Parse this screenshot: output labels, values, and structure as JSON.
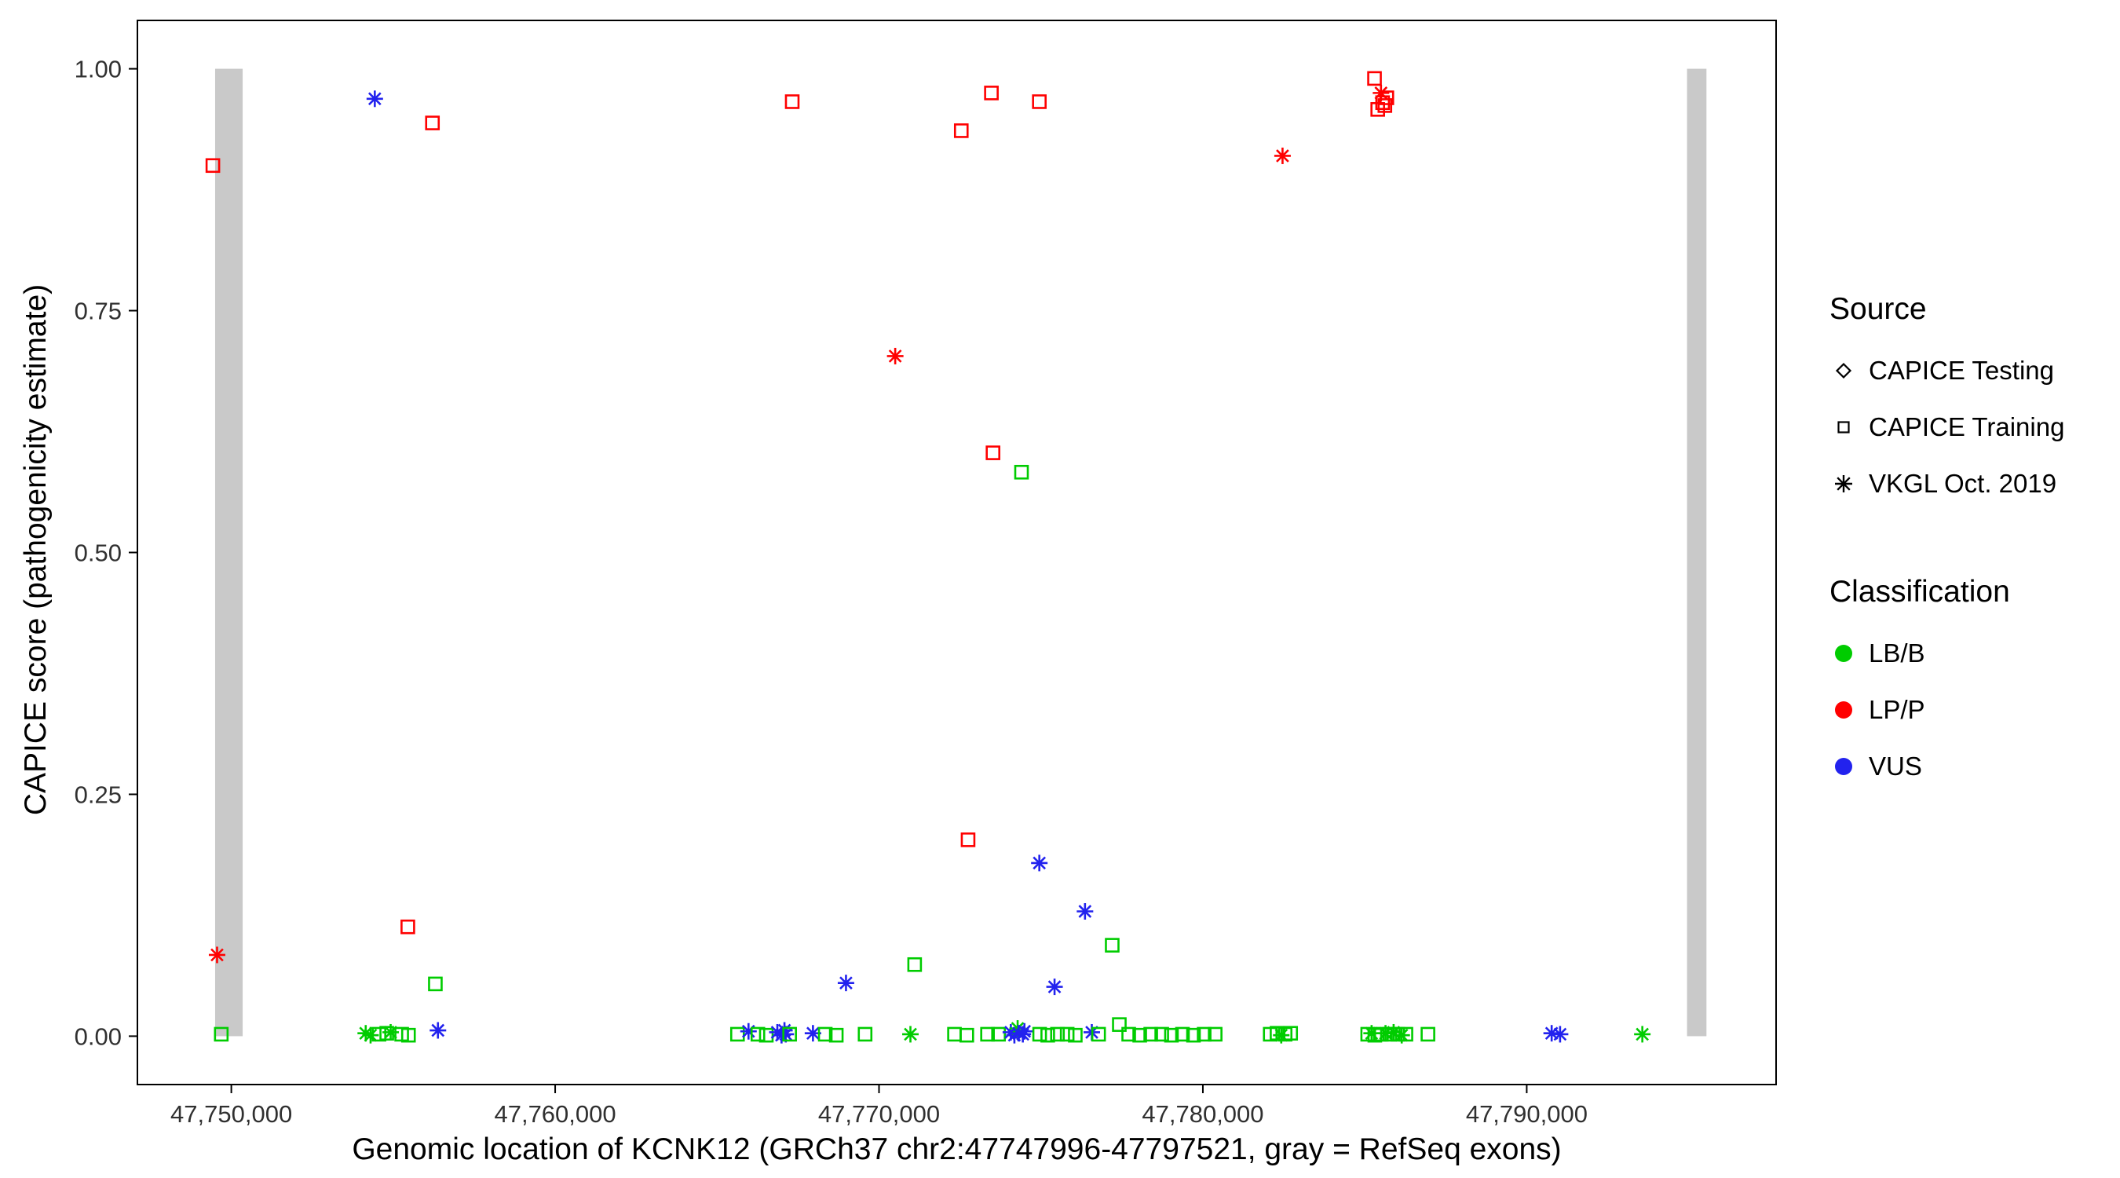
{
  "chart_data": {
    "type": "scatter",
    "title": "",
    "xlabel": "Genomic location of KCNK12 (GRCh37 chr2:47747996-47797521, gray = RefSeq exons)",
    "ylabel": "CAPICE score (pathogenicity estimate)",
    "xlim": [
      47747100,
      47797700
    ],
    "ylim": [
      -0.05,
      1.05
    ],
    "grid": false,
    "x_ticks": [
      {
        "value": 47750000,
        "label": "47,750,000"
      },
      {
        "value": 47760000,
        "label": "47,760,000"
      },
      {
        "value": 47770000,
        "label": "47,770,000"
      },
      {
        "value": 47780000,
        "label": "47,780,000"
      },
      {
        "value": 47790000,
        "label": "47,790,000"
      }
    ],
    "y_ticks": [
      {
        "value": 0.0,
        "label": "0.00"
      },
      {
        "value": 0.25,
        "label": "0.25"
      },
      {
        "value": 0.5,
        "label": "0.50"
      },
      {
        "value": 0.75,
        "label": "0.75"
      },
      {
        "value": 1.0,
        "label": "1.00"
      }
    ],
    "exon_color": "#C9C9C9",
    "exons": [
      {
        "start": 47749500,
        "end": 47750350
      },
      {
        "start": 47794950,
        "end": 47795550
      }
    ],
    "legend": {
      "source": {
        "title": "Source",
        "items": [
          {
            "key": "testing",
            "shape": "diamond",
            "label": "CAPICE Testing"
          },
          {
            "key": "training",
            "shape": "square",
            "label": "CAPICE Training"
          },
          {
            "key": "vkgl",
            "shape": "asterisk",
            "label": "VKGL Oct. 2019"
          }
        ]
      },
      "classification": {
        "title": "Classification",
        "items": [
          {
            "label": "LB/B",
            "color": "#00CC00"
          },
          {
            "label": "LP/P",
            "color": "#FF0000"
          },
          {
            "label": "VUS",
            "color": "#2222EE"
          }
        ]
      }
    },
    "points": [
      {
        "x": 47749430,
        "y": 0.9,
        "src": "training",
        "cls": "LP/P"
      },
      {
        "x": 47749560,
        "y": 0.084,
        "src": "vkgl",
        "cls": "LP/P"
      },
      {
        "x": 47749690,
        "y": 0.002,
        "src": "training",
        "cls": "LB/B"
      },
      {
        "x": 47754430,
        "y": 0.969,
        "src": "vkgl",
        "cls": "VUS"
      },
      {
        "x": 47756210,
        "y": 0.944,
        "src": "training",
        "cls": "LP/P"
      },
      {
        "x": 47755450,
        "y": 0.113,
        "src": "training",
        "cls": "LP/P"
      },
      {
        "x": 47756300,
        "y": 0.054,
        "src": "training",
        "cls": "LB/B"
      },
      {
        "x": 47754150,
        "y": 0.003,
        "src": "vkgl",
        "cls": "LB/B"
      },
      {
        "x": 47754300,
        "y": 0.001,
        "src": "vkgl",
        "cls": "LB/B"
      },
      {
        "x": 47754560,
        "y": 0.002,
        "src": "training",
        "cls": "LB/B"
      },
      {
        "x": 47754800,
        "y": 0.003,
        "src": "training",
        "cls": "LB/B"
      },
      {
        "x": 47754920,
        "y": 0.004,
        "src": "vkgl",
        "cls": "LB/B"
      },
      {
        "x": 47755260,
        "y": 0.002,
        "src": "training",
        "cls": "LB/B"
      },
      {
        "x": 47755470,
        "y": 0.001,
        "src": "training",
        "cls": "LB/B"
      },
      {
        "x": 47756380,
        "y": 0.006,
        "src": "vkgl",
        "cls": "VUS"
      },
      {
        "x": 47765630,
        "y": 0.002,
        "src": "training",
        "cls": "LB/B"
      },
      {
        "x": 47765970,
        "y": 0.005,
        "src": "vkgl",
        "cls": "VUS"
      },
      {
        "x": 47766260,
        "y": 0.002,
        "src": "training",
        "cls": "LB/B"
      },
      {
        "x": 47766520,
        "y": 0.001,
        "src": "training",
        "cls": "LB/B"
      },
      {
        "x": 47766860,
        "y": 0.004,
        "src": "vkgl",
        "cls": "VUS"
      },
      {
        "x": 47766990,
        "y": 0.001,
        "src": "vkgl",
        "cls": "VUS"
      },
      {
        "x": 47767080,
        "y": 0.006,
        "src": "vkgl",
        "cls": "VUS"
      },
      {
        "x": 47767120,
        "y": 0.002,
        "src": "vkgl",
        "cls": "VUS"
      },
      {
        "x": 47767240,
        "y": 0.002,
        "src": "training",
        "cls": "LB/B"
      },
      {
        "x": 47767960,
        "y": 0.003,
        "src": "vkgl",
        "cls": "VUS"
      },
      {
        "x": 47768340,
        "y": 0.002,
        "src": "training",
        "cls": "LB/B"
      },
      {
        "x": 47768680,
        "y": 0.001,
        "src": "training",
        "cls": "LB/B"
      },
      {
        "x": 47768980,
        "y": 0.055,
        "src": "vkgl",
        "cls": "VUS"
      },
      {
        "x": 47769570,
        "y": 0.002,
        "src": "training",
        "cls": "LB/B"
      },
      {
        "x": 47770500,
        "y": 0.703,
        "src": "vkgl",
        "cls": "LP/P"
      },
      {
        "x": 47770970,
        "y": 0.002,
        "src": "vkgl",
        "cls": "LB/B"
      },
      {
        "x": 47771100,
        "y": 0.074,
        "src": "training",
        "cls": "LB/B"
      },
      {
        "x": 47767320,
        "y": 0.966,
        "src": "training",
        "cls": "LP/P"
      },
      {
        "x": 47772540,
        "y": 0.936,
        "src": "training",
        "cls": "LP/P"
      },
      {
        "x": 47773470,
        "y": 0.975,
        "src": "training",
        "cls": "LP/P"
      },
      {
        "x": 47774950,
        "y": 0.966,
        "src": "training",
        "cls": "LP/P"
      },
      {
        "x": 47773520,
        "y": 0.603,
        "src": "training",
        "cls": "LP/P"
      },
      {
        "x": 47774400,
        "y": 0.583,
        "src": "training",
        "cls": "LB/B"
      },
      {
        "x": 47772750,
        "y": 0.203,
        "src": "training",
        "cls": "LP/P"
      },
      {
        "x": 47774950,
        "y": 0.179,
        "src": "vkgl",
        "cls": "VUS"
      },
      {
        "x": 47776360,
        "y": 0.129,
        "src": "vkgl",
        "cls": "VUS"
      },
      {
        "x": 47777200,
        "y": 0.094,
        "src": "training",
        "cls": "LB/B"
      },
      {
        "x": 47775420,
        "y": 0.051,
        "src": "vkgl",
        "cls": "VUS"
      },
      {
        "x": 47772330,
        "y": 0.002,
        "src": "training",
        "cls": "LB/B"
      },
      {
        "x": 47772710,
        "y": 0.001,
        "src": "training",
        "cls": "LB/B"
      },
      {
        "x": 47773350,
        "y": 0.002,
        "src": "training",
        "cls": "LB/B"
      },
      {
        "x": 47773690,
        "y": 0.002,
        "src": "training",
        "cls": "LB/B"
      },
      {
        "x": 47774070,
        "y": 0.004,
        "src": "vkgl",
        "cls": "VUS"
      },
      {
        "x": 47774180,
        "y": 0.001,
        "src": "vkgl",
        "cls": "VUS"
      },
      {
        "x": 47774280,
        "y": 0.008,
        "src": "vkgl",
        "cls": "LB/B"
      },
      {
        "x": 47774310,
        "y": 0.003,
        "src": "vkgl",
        "cls": "VUS"
      },
      {
        "x": 47774440,
        "y": 0.002,
        "src": "vkgl",
        "cls": "VUS"
      },
      {
        "x": 47774490,
        "y": 0.005,
        "src": "vkgl",
        "cls": "VUS"
      },
      {
        "x": 47774960,
        "y": 0.002,
        "src": "training",
        "cls": "LB/B"
      },
      {
        "x": 47775210,
        "y": 0.001,
        "src": "training",
        "cls": "LB/B"
      },
      {
        "x": 47775510,
        "y": 0.002,
        "src": "training",
        "cls": "LB/B"
      },
      {
        "x": 47775810,
        "y": 0.002,
        "src": "training",
        "cls": "LB/B"
      },
      {
        "x": 47776060,
        "y": 0.001,
        "src": "training",
        "cls": "LB/B"
      },
      {
        "x": 47776570,
        "y": 0.004,
        "src": "vkgl",
        "cls": "VUS"
      },
      {
        "x": 47776780,
        "y": 0.002,
        "src": "training",
        "cls": "LB/B"
      },
      {
        "x": 47777420,
        "y": 0.012,
        "src": "training",
        "cls": "LB/B"
      },
      {
        "x": 47777710,
        "y": 0.002,
        "src": "training",
        "cls": "LB/B"
      },
      {
        "x": 47778050,
        "y": 0.001,
        "src": "training",
        "cls": "LB/B"
      },
      {
        "x": 47778390,
        "y": 0.002,
        "src": "training",
        "cls": "LB/B"
      },
      {
        "x": 47778730,
        "y": 0.002,
        "src": "training",
        "cls": "LB/B"
      },
      {
        "x": 47779030,
        "y": 0.001,
        "src": "training",
        "cls": "LB/B"
      },
      {
        "x": 47779370,
        "y": 0.002,
        "src": "training",
        "cls": "LB/B"
      },
      {
        "x": 47779710,
        "y": 0.001,
        "src": "training",
        "cls": "LB/B"
      },
      {
        "x": 47780040,
        "y": 0.002,
        "src": "training",
        "cls": "LB/B"
      },
      {
        "x": 47780380,
        "y": 0.002,
        "src": "training",
        "cls": "LB/B"
      },
      {
        "x": 47782080,
        "y": 0.002,
        "src": "training",
        "cls": "LB/B"
      },
      {
        "x": 47782290,
        "y": 0.003,
        "src": "training",
        "cls": "LB/B"
      },
      {
        "x": 47782420,
        "y": 0.001,
        "src": "vkgl",
        "cls": "LB/B"
      },
      {
        "x": 47782540,
        "y": 0.002,
        "src": "training",
        "cls": "LB/B"
      },
      {
        "x": 47782710,
        "y": 0.003,
        "src": "training",
        "cls": "LB/B"
      },
      {
        "x": 47782460,
        "y": 0.91,
        "src": "vkgl",
        "cls": "LP/P"
      },
      {
        "x": 47785300,
        "y": 0.99,
        "src": "training",
        "cls": "LP/P"
      },
      {
        "x": 47785400,
        "y": 0.958,
        "src": "training",
        "cls": "LP/P"
      },
      {
        "x": 47785500,
        "y": 0.975,
        "src": "vkgl",
        "cls": "LP/P"
      },
      {
        "x": 47785550,
        "y": 0.965,
        "src": "training",
        "cls": "LP/P"
      },
      {
        "x": 47785620,
        "y": 0.962,
        "src": "training",
        "cls": "LP/P"
      },
      {
        "x": 47785680,
        "y": 0.97,
        "src": "training",
        "cls": "LP/P"
      },
      {
        "x": 47785090,
        "y": 0.002,
        "src": "training",
        "cls": "LB/B"
      },
      {
        "x": 47785210,
        "y": 0.003,
        "src": "vkgl",
        "cls": "LB/B"
      },
      {
        "x": 47785310,
        "y": 0.001,
        "src": "training",
        "cls": "LB/B"
      },
      {
        "x": 47785510,
        "y": 0.002,
        "src": "training",
        "cls": "LB/B"
      },
      {
        "x": 47785640,
        "y": 0.003,
        "src": "vkgl",
        "cls": "LB/B"
      },
      {
        "x": 47785770,
        "y": 0.002,
        "src": "training",
        "cls": "LB/B"
      },
      {
        "x": 47785890,
        "y": 0.004,
        "src": "vkgl",
        "cls": "LB/B"
      },
      {
        "x": 47786020,
        "y": 0.002,
        "src": "training",
        "cls": "LB/B"
      },
      {
        "x": 47786140,
        "y": 0.001,
        "src": "vkgl",
        "cls": "LB/B"
      },
      {
        "x": 47786270,
        "y": 0.002,
        "src": "training",
        "cls": "LB/B"
      },
      {
        "x": 47786950,
        "y": 0.002,
        "src": "training",
        "cls": "LB/B"
      },
      {
        "x": 47790770,
        "y": 0.003,
        "src": "vkgl",
        "cls": "VUS"
      },
      {
        "x": 47791030,
        "y": 0.002,
        "src": "vkgl",
        "cls": "VUS"
      },
      {
        "x": 47793570,
        "y": 0.002,
        "src": "vkgl",
        "cls": "LB/B"
      }
    ]
  }
}
